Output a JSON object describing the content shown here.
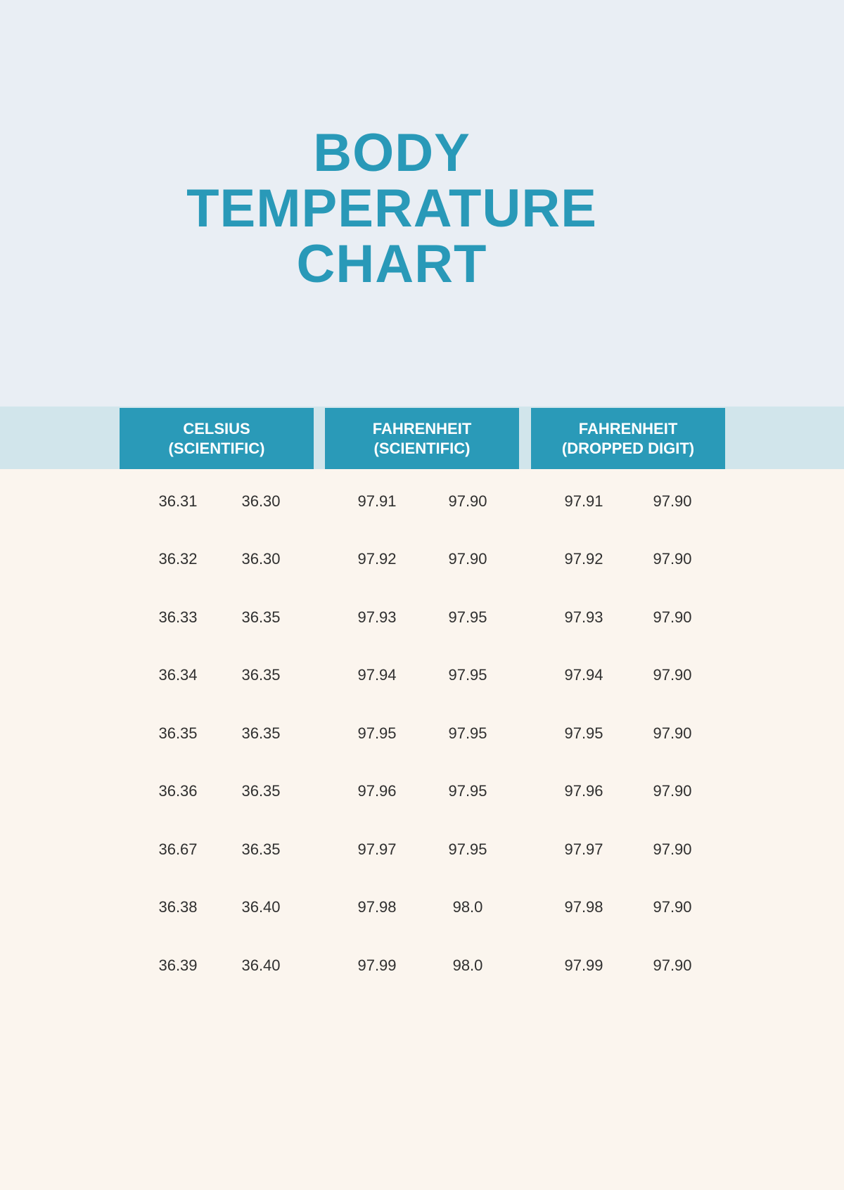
{
  "title": {
    "lines": [
      "BODY",
      "TEMPERATURE",
      "CHART"
    ]
  },
  "table": {
    "headers": [
      {
        "line1": "CELSIUS",
        "line2": "(SCIENTIFIC)"
      },
      {
        "line1": "FAHRENHEIT",
        "line2": "(SCIENTIFIC)"
      },
      {
        "line1": "FAHRENHEIT",
        "line2": "(DROPPED DIGIT)"
      }
    ],
    "rows": [
      [
        "36.31",
        "36.30",
        "97.91",
        "97.90",
        "97.91",
        "97.90"
      ],
      [
        "36.32",
        "36.30",
        "97.92",
        "97.90",
        "97.92",
        "97.90"
      ],
      [
        "36.33",
        "36.35",
        "97.93",
        "97.95",
        "97.93",
        "97.90"
      ],
      [
        "36.34",
        "36.35",
        "97.94",
        "97.95",
        "97.94",
        "97.90"
      ],
      [
        "36.35",
        "36.35",
        "97.95",
        "97.95",
        "97.95",
        "97.90"
      ],
      [
        "36.36",
        "36.35",
        "97.96",
        "97.95",
        "97.96",
        "97.90"
      ],
      [
        "36.67",
        "36.35",
        "97.97",
        "97.95",
        "97.97",
        "97.90"
      ],
      [
        "36.38",
        "36.40",
        "97.98",
        "98.0",
        "97.98",
        "97.90"
      ],
      [
        "36.39",
        "36.40",
        "97.99",
        "98.0",
        "97.99",
        "97.90"
      ]
    ]
  },
  "chart_data": {
    "type": "table",
    "title": "BODY TEMPERATURE CHART",
    "columns": [
      "CELSIUS (SCIENTIFIC) a",
      "CELSIUS (SCIENTIFIC) b",
      "FAHRENHEIT (SCIENTIFIC) a",
      "FAHRENHEIT (SCIENTIFIC) b",
      "FAHRENHEIT (DROPPED DIGIT) a",
      "FAHRENHEIT (DROPPED DIGIT) b"
    ],
    "rows": [
      [
        36.31,
        36.3,
        97.91,
        97.9,
        97.91,
        97.9
      ],
      [
        36.32,
        36.3,
        97.92,
        97.9,
        97.92,
        97.9
      ],
      [
        36.33,
        36.35,
        97.93,
        97.95,
        97.93,
        97.9
      ],
      [
        36.34,
        36.35,
        97.94,
        97.95,
        97.94,
        97.9
      ],
      [
        36.35,
        36.35,
        97.95,
        97.95,
        97.95,
        97.9
      ],
      [
        36.36,
        36.35,
        97.96,
        97.95,
        97.96,
        97.9
      ],
      [
        36.67,
        36.35,
        97.97,
        97.95,
        97.97,
        97.9
      ],
      [
        36.38,
        36.4,
        97.98,
        98.0,
        97.98,
        97.9
      ],
      [
        36.39,
        36.4,
        97.99,
        98.0,
        97.99,
        97.9
      ]
    ]
  },
  "colors": {
    "top_background": "#e9eef4",
    "band_background": "#d1e5eb",
    "header_teal": "#2a9ab8",
    "title_teal": "#2999b8",
    "table_background": "#fbf5ee",
    "number_text": "#2f2f2f",
    "header_text": "#ffffff"
  }
}
